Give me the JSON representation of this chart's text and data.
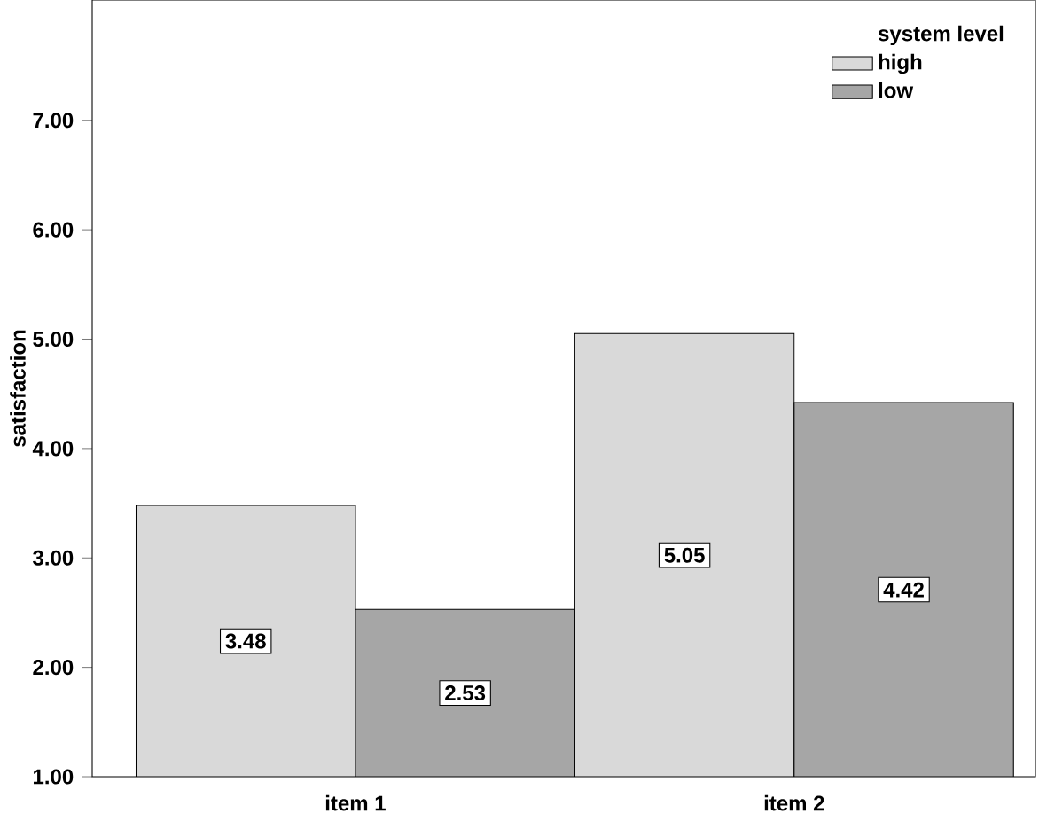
{
  "chart_data": {
    "type": "bar",
    "ylabel": "satisfaction",
    "legend_title": "system level",
    "categories": [
      "item 1",
      "item 2"
    ],
    "series": [
      {
        "name": "high",
        "color": "#d9d9d9",
        "values": [
          3.48,
          5.05
        ]
      },
      {
        "name": "low",
        "color": "#a6a6a6",
        "values": [
          2.53,
          4.42
        ]
      }
    ],
    "ylim": [
      1,
      8.1
    ],
    "yticks": [
      {
        "value": 1,
        "label": "1.00"
      },
      {
        "value": 2,
        "label": "2.00"
      },
      {
        "value": 3,
        "label": "3.00"
      },
      {
        "value": 4,
        "label": "4.00"
      },
      {
        "value": 5,
        "label": "5.00"
      },
      {
        "value": 6,
        "label": "6.00"
      },
      {
        "value": 7,
        "label": "7.00"
      }
    ],
    "data_labels": true,
    "legend": "top right",
    "grid": false
  }
}
